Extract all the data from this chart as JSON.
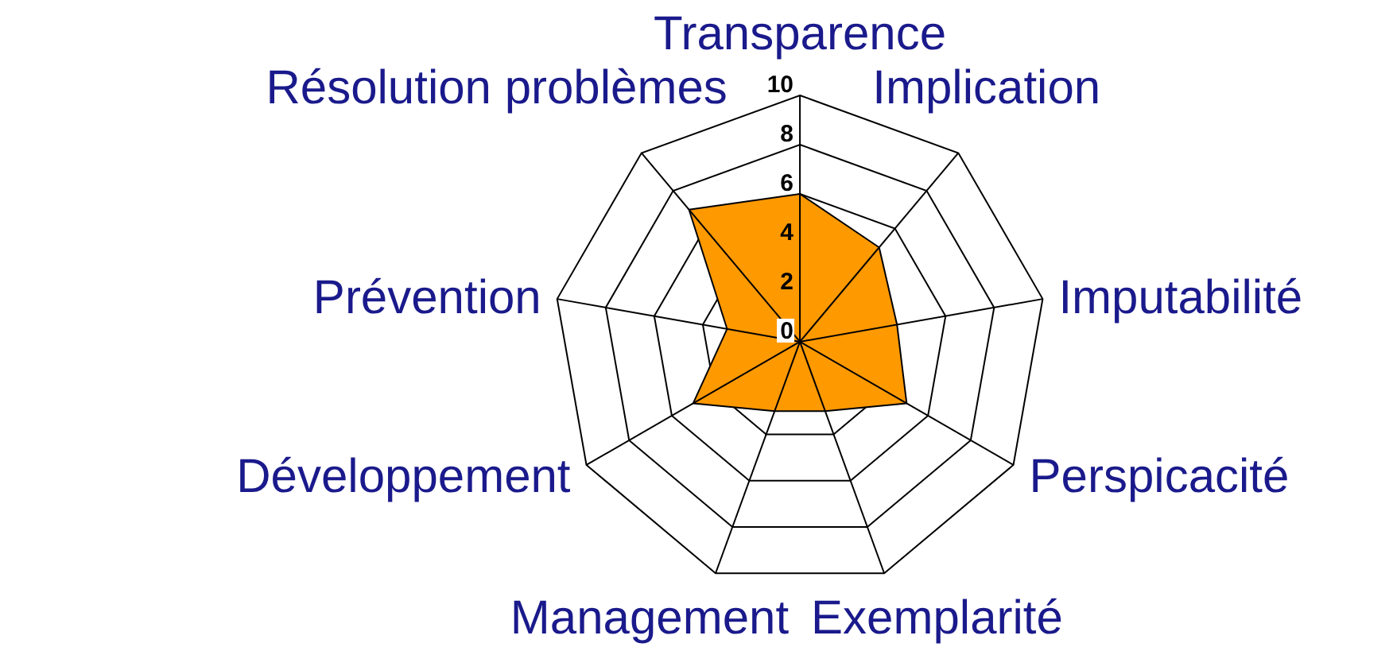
{
  "chart_data": {
    "type": "radar",
    "categories": [
      "Transparence",
      "Implication",
      "Imputabilité",
      "Perspicacité",
      "Exemplarité",
      "Management",
      "Développement",
      "Prévention",
      "Résolution problèmes"
    ],
    "series": [
      {
        "color": "#ff9900",
        "values": [
          6,
          5,
          4,
          5,
          3,
          3,
          5,
          3,
          7
        ]
      }
    ],
    "ylim": [
      0,
      10
    ],
    "yticks": [
      0,
      2,
      4,
      6,
      8,
      10
    ],
    "grid": true
  }
}
